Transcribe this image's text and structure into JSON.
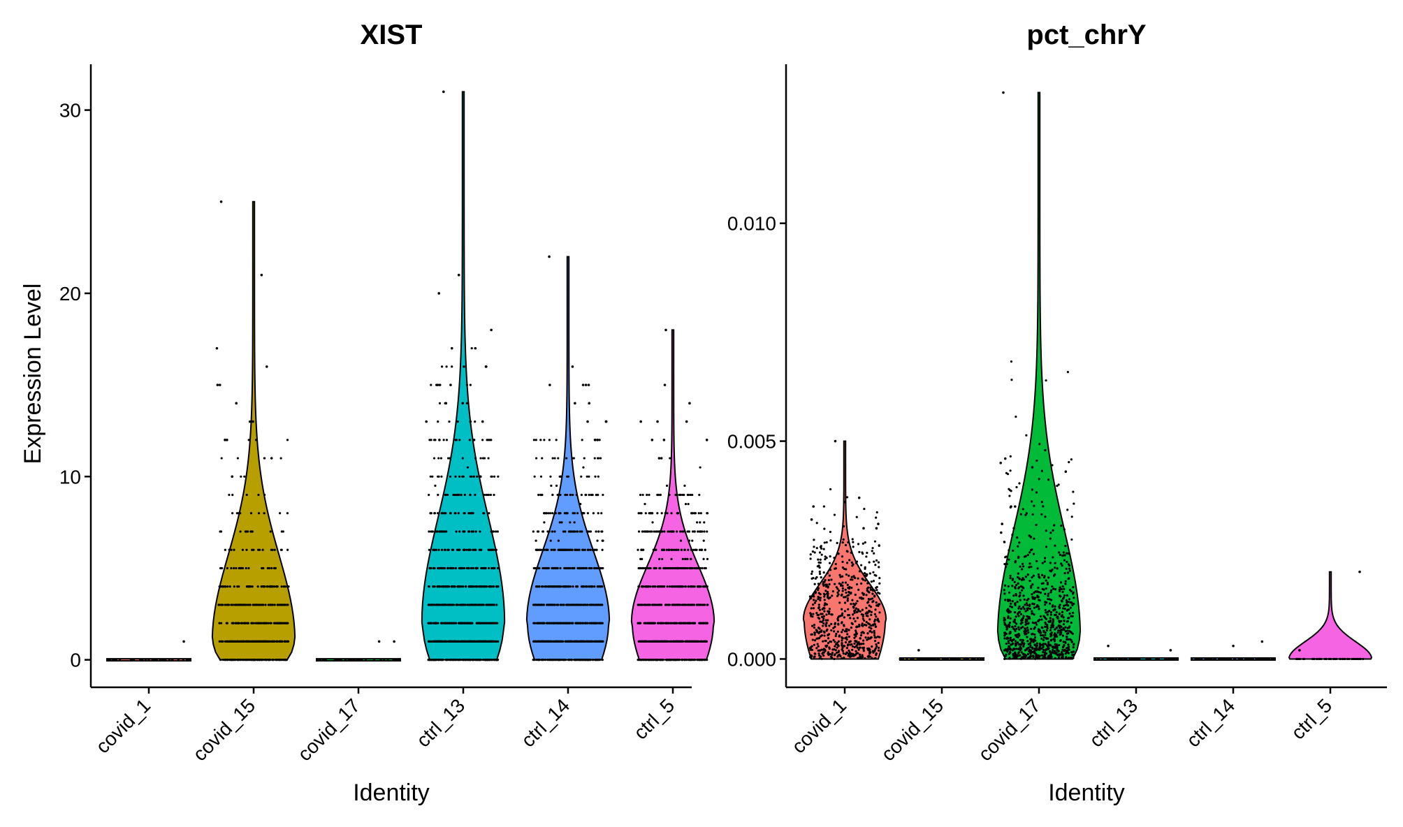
{
  "chart_data": [
    {
      "type": "violin",
      "title": "XIST",
      "xlabel": "Identity",
      "ylabel": "Expression Level",
      "categories": [
        "covid_1",
        "covid_15",
        "covid_17",
        "ctrl_13",
        "ctrl_14",
        "ctrl_5"
      ],
      "colors": [
        "#F8766D",
        "#B79F00",
        "#00BA38",
        "#00BFC4",
        "#619CFF",
        "#F564E3"
      ],
      "ylim": [
        -1.5,
        32.5
      ],
      "yticks": [
        0,
        10,
        20,
        30
      ],
      "ytick_labels": [
        "0",
        "10",
        "20",
        "30"
      ],
      "grid": false,
      "series": [
        {
          "category": "covid_1",
          "max": 1,
          "median": 0,
          "points_level": 1.0,
          "n_points": 40,
          "outliers": [
            1
          ]
        },
        {
          "category": "covid_15",
          "max": 25,
          "median": 1,
          "points_level": 1.0,
          "n_points": 520,
          "outliers": [
            25,
            21,
            17,
            16,
            15,
            15,
            14,
            13,
            12,
            12,
            11,
            10
          ]
        },
        {
          "category": "covid_17",
          "max": 1,
          "median": 0,
          "points_level": 1.0,
          "n_points": 40,
          "outliers": [
            1,
            1
          ]
        },
        {
          "category": "ctrl_13",
          "max": 31,
          "median": 2,
          "points_level": 1.0,
          "n_points": 950,
          "outliers": [
            31,
            21,
            20,
            18,
            17,
            17,
            16,
            16,
            16,
            15,
            15,
            14,
            14,
            13,
            13,
            13,
            12,
            12
          ]
        },
        {
          "category": "ctrl_14",
          "max": 22,
          "median": 2,
          "points_level": 1.0,
          "n_points": 900,
          "outliers": [
            22,
            16,
            15,
            15,
            15,
            15,
            14,
            14,
            13,
            13,
            13,
            12,
            12
          ]
        },
        {
          "category": "ctrl_5",
          "max": 18,
          "median": 2,
          "points_level": 1.0,
          "n_points": 850,
          "outliers": [
            18,
            15,
            14,
            13,
            13,
            13,
            12,
            12,
            12,
            11,
            11
          ]
        }
      ]
    },
    {
      "type": "violin",
      "title": "pct_chrY",
      "xlabel": "Identity",
      "ylabel": "",
      "categories": [
        "covid_1",
        "covid_15",
        "covid_17",
        "ctrl_13",
        "ctrl_14",
        "ctrl_5"
      ],
      "colors": [
        "#F8766D",
        "#B79F00",
        "#00BA38",
        "#00BFC4",
        "#619CFF",
        "#F564E3"
      ],
      "ylim": [
        -0.00065,
        0.01365
      ],
      "yticks": [
        0,
        0.005,
        0.01
      ],
      "ytick_labels": [
        "0.000",
        "0.005",
        "0.010"
      ],
      "grid": false,
      "series": [
        {
          "category": "covid_1",
          "max": 0.005,
          "median": 0.0009,
          "points_level": 1.0,
          "n_points": 700,
          "outliers": [
            0.005,
            0.0037,
            0.0036,
            0.0035,
            0.0032,
            0.0031,
            0.003,
            0.003
          ]
        },
        {
          "category": "covid_15",
          "max": 0.0002,
          "median": 0,
          "points_level": 0.0,
          "n_points": 60,
          "outliers": [
            0.0002
          ]
        },
        {
          "category": "covid_17",
          "max": 0.013,
          "median": 0.0005,
          "points_level": 1.0,
          "n_points": 900,
          "outliers": [
            0.013,
            0.0046,
            0.0045,
            0.0044,
            0.0043,
            0.0035,
            0.0035,
            0.0031,
            0.003,
            0.0029,
            0.0028
          ]
        },
        {
          "category": "ctrl_13",
          "max": 0.0003,
          "median": 0,
          "points_level": 0.0,
          "n_points": 60,
          "outliers": [
            0.0003,
            0.0002
          ]
        },
        {
          "category": "ctrl_14",
          "max": 0.0004,
          "median": 0,
          "points_level": 0.0,
          "n_points": 60,
          "outliers": [
            0.0004,
            0.0003
          ]
        },
        {
          "category": "ctrl_5",
          "max": 0.002,
          "median": 0,
          "points_level": 0.0,
          "n_points": 60,
          "outliers": [
            0.002,
            0.0002
          ]
        }
      ]
    }
  ]
}
